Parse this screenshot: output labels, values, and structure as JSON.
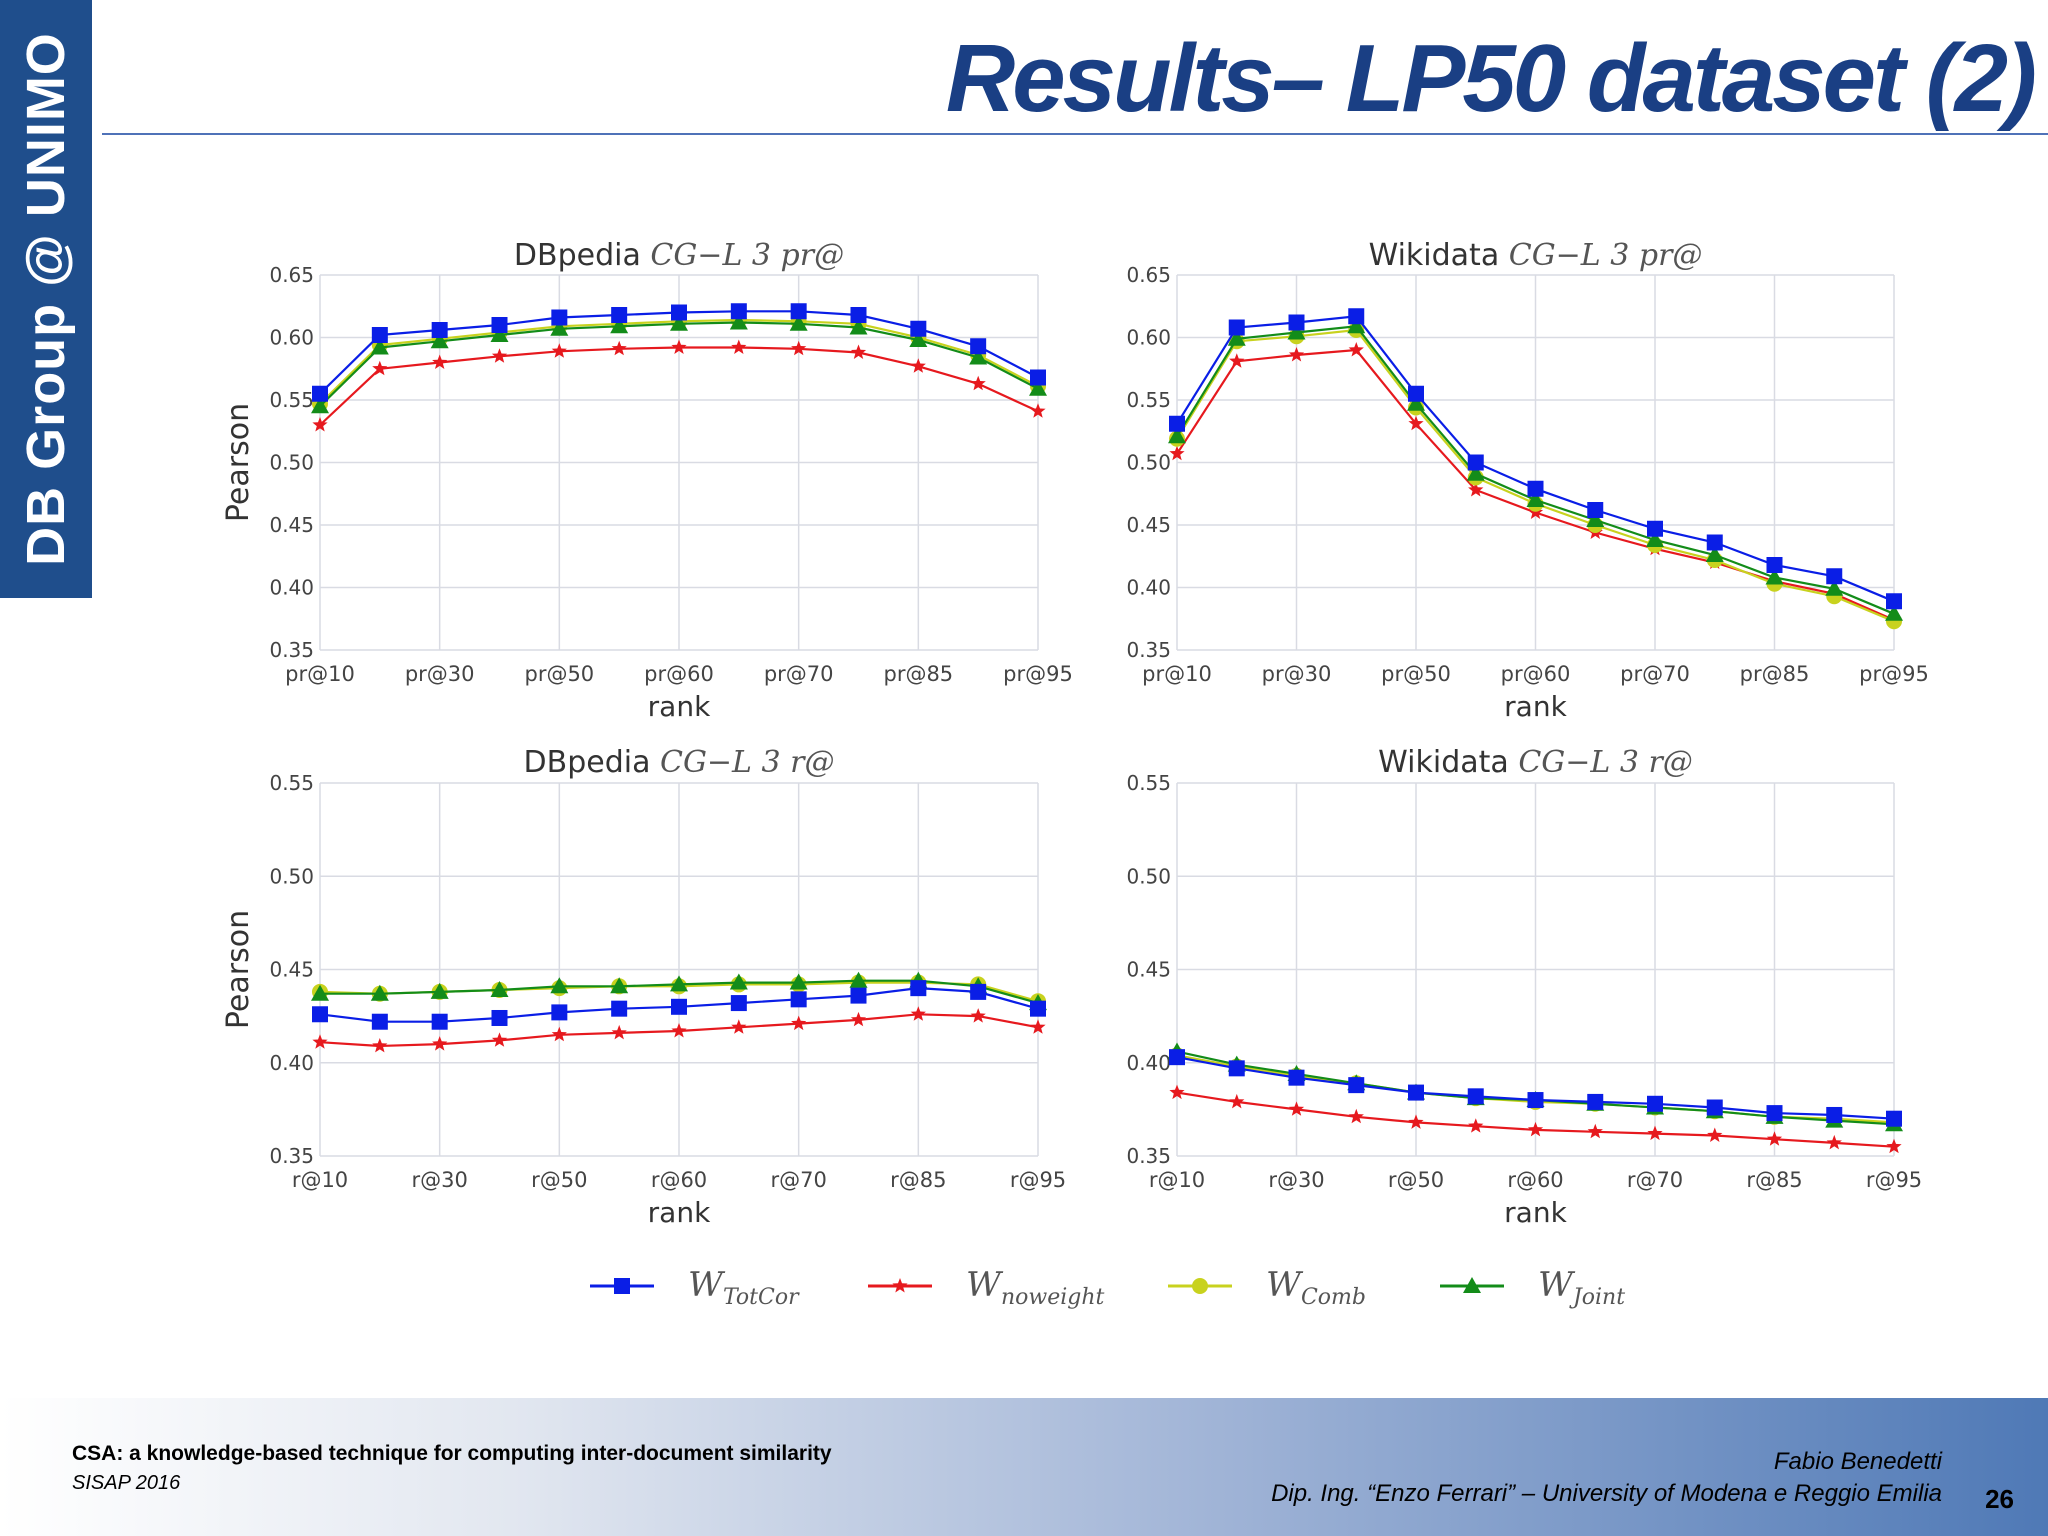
{
  "sidebar": {
    "text": "DB Group @ UNIMO"
  },
  "slide": {
    "title": "Results– LP50 dataset (2)"
  },
  "footer": {
    "paper_title": "CSA: a knowledge-based technique for computing inter-document similarity",
    "venue": "SISAP 2016",
    "author": "Fabio Benedetti",
    "affiliation": "Dip. Ing. “Enzo Ferrari” – University of Modena e Reggio Emilia",
    "page_number": "26"
  },
  "colors": {
    "banner": "#1f4e8c",
    "title": "#1a3f84",
    "W_TotCor": "#0a1ee6",
    "W_noweight": "#e6191e",
    "W_Comb": "#c8d21e",
    "W_Joint": "#138c19"
  },
  "legend": [
    {
      "label": "W",
      "sub": "TotCor",
      "color": "#0a1ee6",
      "marker": "square"
    },
    {
      "label": "W",
      "sub": "noweight",
      "color": "#e6191e",
      "marker": "star"
    },
    {
      "label": "W",
      "sub": "Comb",
      "color": "#c8d21e",
      "marker": "circle"
    },
    {
      "label": "W",
      "sub": "Joint",
      "color": "#138c19",
      "marker": "triangle"
    }
  ],
  "chart_data": [
    {
      "type": "line",
      "title": "DBpedia CG−L 3 pr@",
      "title_plain": "DBpedia",
      "title_math": "CG−L 3 pr@",
      "xlabel": "rank",
      "ylabel": "Pearson",
      "ylim": [
        0.35,
        0.65
      ],
      "yticks": [
        "0.35",
        "0.40",
        "0.45",
        "0.50",
        "0.55",
        "0.60",
        "0.65"
      ],
      "xtick_labels": [
        "pr@10",
        "pr@30",
        "pr@50",
        "pr@60",
        "pr@70",
        "pr@85",
        "pr@95"
      ],
      "series": [
        {
          "name": "W_TotCor",
          "values": [
            0.555,
            0.602,
            0.606,
            0.61,
            0.616,
            0.618,
            0.62,
            0.621,
            0.621,
            0.618,
            0.607,
            0.593,
            0.568
          ]
        },
        {
          "name": "W_noweight",
          "values": [
            0.53,
            0.575,
            0.58,
            0.585,
            0.589,
            0.591,
            0.592,
            0.592,
            0.591,
            0.588,
            0.577,
            0.563,
            0.541
          ]
        },
        {
          "name": "W_Comb",
          "values": [
            0.547,
            0.594,
            0.599,
            0.604,
            0.609,
            0.611,
            0.613,
            0.614,
            0.613,
            0.611,
            0.6,
            0.586,
            0.561
          ]
        },
        {
          "name": "W_Joint",
          "values": [
            0.545,
            0.592,
            0.597,
            0.602,
            0.607,
            0.609,
            0.611,
            0.612,
            0.611,
            0.608,
            0.598,
            0.584,
            0.559
          ]
        }
      ]
    },
    {
      "type": "line",
      "title": "Wikidata CG−L 3 pr@",
      "title_plain": "Wikidata",
      "title_math": "CG−L 3 pr@",
      "xlabel": "rank",
      "ylabel": "",
      "ylim": [
        0.35,
        0.65
      ],
      "yticks": [
        "0.35",
        "0.40",
        "0.45",
        "0.50",
        "0.55",
        "0.60",
        "0.65"
      ],
      "xtick_labels": [
        "pr@10",
        "pr@30",
        "pr@50",
        "pr@60",
        "pr@70",
        "pr@85",
        "pr@95"
      ],
      "series": [
        {
          "name": "W_TotCor",
          "values": [
            0.531,
            0.608,
            0.612,
            0.617,
            0.555,
            0.5,
            0.479,
            0.462,
            0.447,
            0.436,
            0.418,
            0.409,
            0.389
          ]
        },
        {
          "name": "W_noweight",
          "values": [
            0.507,
            0.581,
            0.586,
            0.59,
            0.531,
            0.478,
            0.46,
            0.444,
            0.431,
            0.42,
            0.405,
            0.395,
            0.374
          ]
        },
        {
          "name": "W_Comb",
          "values": [
            0.519,
            0.597,
            0.601,
            0.606,
            0.544,
            0.488,
            0.467,
            0.45,
            0.434,
            0.422,
            0.403,
            0.393,
            0.373
          ]
        },
        {
          "name": "W_Joint",
          "values": [
            0.521,
            0.599,
            0.604,
            0.609,
            0.547,
            0.491,
            0.47,
            0.454,
            0.438,
            0.426,
            0.408,
            0.399,
            0.379
          ]
        }
      ]
    },
    {
      "type": "line",
      "title": "DBpedia CG−L 3 r@",
      "title_plain": "DBpedia",
      "title_math": "CG−L 3 r@",
      "xlabel": "rank",
      "ylabel": "Pearson",
      "ylim": [
        0.35,
        0.55
      ],
      "yticks": [
        "0.35",
        "0.40",
        "0.45",
        "0.50",
        "0.55"
      ],
      "xtick_labels": [
        "r@10",
        "r@30",
        "r@50",
        "r@60",
        "r@70",
        "r@85",
        "r@95"
      ],
      "series": [
        {
          "name": "W_TotCor",
          "values": [
            0.426,
            0.422,
            0.422,
            0.424,
            0.427,
            0.429,
            0.43,
            0.432,
            0.434,
            0.436,
            0.44,
            0.438,
            0.429
          ]
        },
        {
          "name": "W_noweight",
          "values": [
            0.411,
            0.409,
            0.41,
            0.412,
            0.415,
            0.416,
            0.417,
            0.419,
            0.421,
            0.423,
            0.426,
            0.425,
            0.419
          ]
        },
        {
          "name": "W_Comb",
          "values": [
            0.438,
            0.437,
            0.438,
            0.439,
            0.44,
            0.441,
            0.441,
            0.442,
            0.442,
            0.443,
            0.443,
            0.442,
            0.433
          ]
        },
        {
          "name": "W_Joint",
          "values": [
            0.437,
            0.437,
            0.438,
            0.439,
            0.441,
            0.441,
            0.442,
            0.443,
            0.443,
            0.444,
            0.444,
            0.441,
            0.432
          ]
        }
      ]
    },
    {
      "type": "line",
      "title": "Wikidata CG−L 3 r@",
      "title_plain": "Wikidata",
      "title_math": "CG−L 3 r@",
      "xlabel": "rank",
      "ylabel": "",
      "ylim": [
        0.35,
        0.55
      ],
      "yticks": [
        "0.35",
        "0.40",
        "0.45",
        "0.50",
        "0.55"
      ],
      "xtick_labels": [
        "r@10",
        "r@30",
        "r@50",
        "r@60",
        "r@70",
        "r@85",
        "r@95"
      ],
      "series": [
        {
          "name": "W_TotCor",
          "values": [
            0.403,
            0.397,
            0.392,
            0.388,
            0.384,
            0.382,
            0.38,
            0.379,
            0.378,
            0.376,
            0.373,
            0.372,
            0.37
          ]
        },
        {
          "name": "W_noweight",
          "values": [
            0.384,
            0.379,
            0.375,
            0.371,
            0.368,
            0.366,
            0.364,
            0.363,
            0.362,
            0.361,
            0.359,
            0.357,
            0.355
          ]
        },
        {
          "name": "W_Comb",
          "values": [
            0.404,
            0.398,
            0.393,
            0.389,
            0.384,
            0.381,
            0.379,
            0.378,
            0.376,
            0.374,
            0.371,
            0.37,
            0.368
          ]
        },
        {
          "name": "W_Joint",
          "values": [
            0.406,
            0.399,
            0.394,
            0.389,
            0.384,
            0.381,
            0.38,
            0.378,
            0.376,
            0.374,
            0.371,
            0.369,
            0.367
          ]
        }
      ]
    }
  ]
}
